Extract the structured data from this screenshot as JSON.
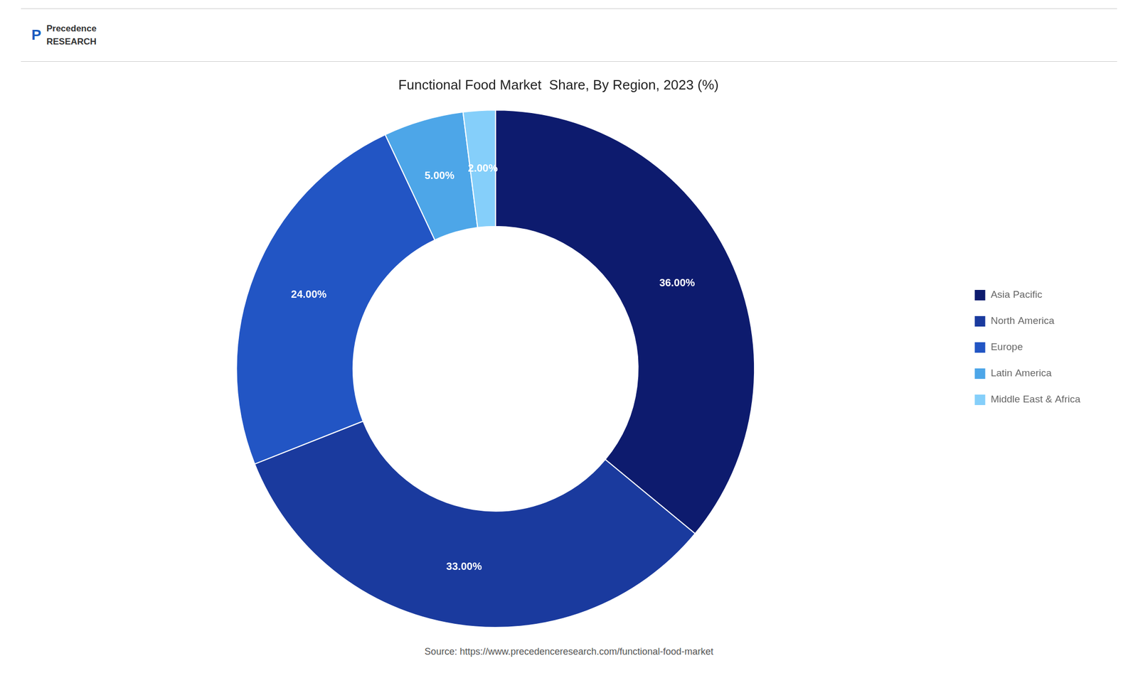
{
  "chart_data": {
    "type": "doughnut",
    "title": "Functional Food Market  Share, By Region, 2023 (%)",
    "categories": [
      "Asia Pacific",
      "North America",
      "Europe",
      "Latin America",
      "Middle East & Africa"
    ],
    "values": [
      36.0,
      33.0,
      24.0,
      5.0,
      2.0
    ],
    "value_labels": [
      "36.00%",
      "33.00%",
      "24.00%",
      "5.00%",
      "2.00%"
    ],
    "colors": [
      "#0d1b6e",
      "#1a3a9e",
      "#2255c4",
      "#4da6e8",
      "#85cffa"
    ],
    "data_labels": true,
    "legend": "right",
    "annotations": [
      "P",
      "Precedence",
      "RESEARCH",
      "Source: https://www.precedenceresearch.com/functional-food-market"
    ]
  }
}
